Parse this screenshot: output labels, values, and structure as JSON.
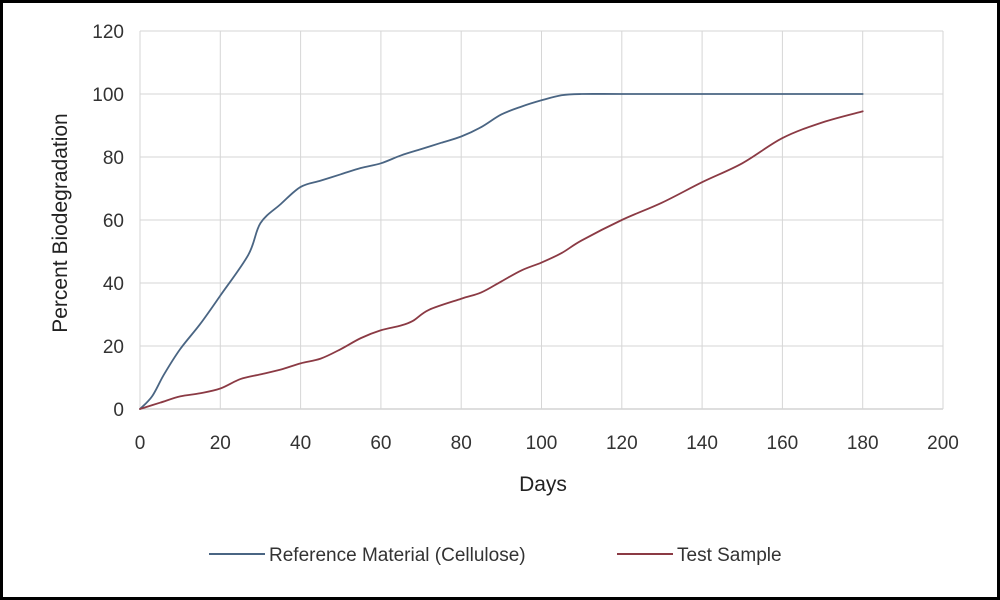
{
  "chart_data": {
    "type": "line",
    "title": "",
    "xlabel": "Days",
    "ylabel": "Percent Biodegradation",
    "xlim": [
      0,
      200
    ],
    "ylim": [
      0,
      120
    ],
    "xticks": [
      0,
      20,
      40,
      60,
      80,
      100,
      120,
      140,
      160,
      180,
      200
    ],
    "yticks": [
      0,
      20,
      40,
      60,
      80,
      100,
      120
    ],
    "grid": true,
    "legend_position": "bottom",
    "series": [
      {
        "name": "Reference Material (Cellulose)",
        "color": "#4a6583",
        "x": [
          0,
          3,
          6,
          10,
          15,
          20,
          27,
          30,
          35,
          40,
          45,
          50,
          55,
          60,
          65,
          70,
          75,
          80,
          85,
          90,
          95,
          100,
          105,
          110,
          120,
          140,
          160,
          180
        ],
        "y": [
          0,
          4,
          11,
          19,
          27,
          36,
          49,
          59,
          65,
          70.5,
          72.5,
          74.5,
          76.5,
          78,
          80.5,
          82.5,
          84.5,
          86.5,
          89.5,
          93.5,
          96,
          98,
          99.6,
          100,
          100,
          100,
          100,
          100
        ]
      },
      {
        "name": "Test Sample",
        "color": "#8b3a44",
        "x": [
          0,
          5,
          10,
          15,
          20,
          25,
          30,
          35,
          40,
          45,
          50,
          55,
          60,
          65,
          68,
          72,
          80,
          85,
          90,
          95,
          100,
          105,
          110,
          120,
          130,
          140,
          150,
          160,
          170,
          180
        ],
        "y": [
          0,
          2,
          4,
          5,
          6.5,
          9.5,
          11,
          12.5,
          14.5,
          16,
          19,
          22.5,
          25,
          26.5,
          28,
          31.5,
          35,
          37,
          40.5,
          44,
          46.5,
          49.5,
          53.5,
          60,
          65.5,
          72,
          78,
          86,
          91,
          94.5
        ]
      }
    ]
  }
}
